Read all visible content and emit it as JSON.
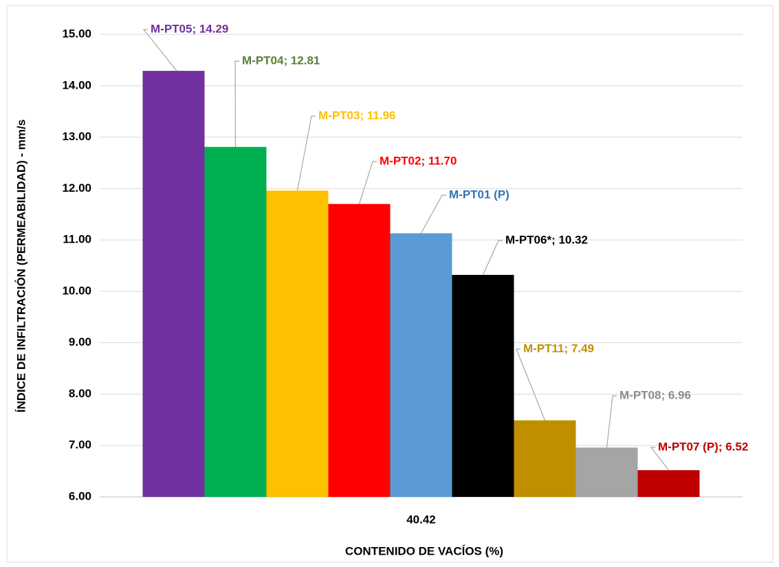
{
  "chart_data": {
    "type": "bar",
    "x_label": "CONTENIDO DE VACÍOS (%)",
    "y_label": "ÍNDICE DE INFILTRACIÓN (PERMEABILIDAD) - mm/s",
    "categories": [
      "40.42"
    ],
    "ylim": [
      6,
      15
    ],
    "yticks": [
      {
        "value": 6,
        "label": "6.00"
      },
      {
        "value": 7,
        "label": "7.00"
      },
      {
        "value": 8,
        "label": "8.00"
      },
      {
        "value": 9,
        "label": "9.00"
      },
      {
        "value": 10,
        "label": "10.00"
      },
      {
        "value": 11,
        "label": "11.00"
      },
      {
        "value": 12,
        "label": "12.00"
      },
      {
        "value": 13,
        "label": "13.00"
      },
      {
        "value": 14,
        "label": "14.00"
      },
      {
        "value": 15,
        "label": "15.00"
      }
    ],
    "grid": true,
    "series": [
      {
        "color": "#7030a0",
        "label_color": "#7030a0",
        "values": [
          14.29
        ],
        "value_labels": [
          "M-PT05; 14.29"
        ]
      },
      {
        "color": "#00b050",
        "label_color": "#548235",
        "values": [
          12.81
        ],
        "value_labels": [
          "M-PT04; 12.81"
        ]
      },
      {
        "color": "#ffc000",
        "label_color": "#ffc000",
        "values": [
          11.96
        ],
        "value_labels": [
          "M-PT03; 11.96"
        ]
      },
      {
        "color": "#ff0000",
        "label_color": "#ff0000",
        "values": [
          11.7
        ],
        "value_labels": [
          "M-PT02; 11.70"
        ]
      },
      {
        "name": "M-PT01 (P)",
        "color": "#5b9bd5",
        "label_color": "#2e75b6",
        "values": [
          11.13
        ]
      },
      {
        "color": "#000000",
        "label_color": "#000000",
        "values": [
          10.32
        ],
        "value_labels": [
          "M-PT06*; 10.32"
        ]
      },
      {
        "color": "#bf8f00",
        "label_color": "#bf9000",
        "values": [
          7.49
        ],
        "value_labels": [
          "M-PT11; 7.49"
        ]
      },
      {
        "color": "#a5a5a5",
        "label_color": "#8c8c8c",
        "values": [
          6.96
        ],
        "value_labels": [
          "M-PT08; 6.96"
        ]
      },
      {
        "color": "#c00000",
        "label_color": "#c00000",
        "values": [
          6.52
        ],
        "value_labels": [
          "M-PT07 (P); 6.52"
        ]
      }
    ]
  }
}
